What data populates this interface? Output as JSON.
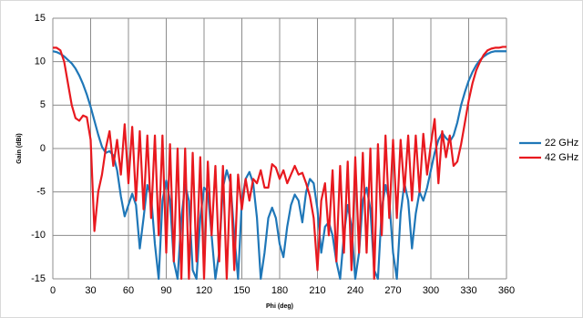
{
  "chart_data": {
    "type": "line",
    "xlabel": "Phi (deg)",
    "ylabel": "Gain (dBi)",
    "x": [
      0,
      3,
      6,
      9,
      12,
      15,
      18,
      21,
      24,
      27,
      30,
      33,
      36,
      39,
      42,
      45,
      48,
      51,
      54,
      57,
      60,
      63,
      66,
      69,
      72,
      75,
      78,
      81,
      84,
      87,
      90,
      93,
      96,
      99,
      102,
      105,
      108,
      111,
      114,
      117,
      120,
      123,
      126,
      129,
      132,
      135,
      138,
      141,
      144,
      147,
      150,
      153,
      156,
      159,
      162,
      165,
      168,
      171,
      174,
      177,
      180,
      183,
      186,
      189,
      192,
      195,
      198,
      201,
      204,
      207,
      210,
      213,
      216,
      219,
      222,
      225,
      228,
      231,
      234,
      237,
      240,
      243,
      246,
      249,
      252,
      255,
      258,
      261,
      264,
      267,
      270,
      273,
      276,
      279,
      282,
      285,
      288,
      291,
      294,
      297,
      300,
      303,
      306,
      309,
      312,
      315,
      318,
      321,
      324,
      327,
      330,
      333,
      336,
      339,
      342,
      345,
      348,
      351,
      354,
      357,
      360
    ],
    "series": [
      {
        "name": "22 GHz",
        "color": "#1f77b8",
        "values": [
          11.2,
          11.1,
          10.9,
          10.6,
          10.2,
          9.8,
          9.2,
          8.4,
          7.4,
          6.2,
          4.8,
          3.2,
          1.6,
          0.2,
          -0.5,
          -0.3,
          -0.8,
          -2.5,
          -5.5,
          -7.8,
          -6.5,
          -5.2,
          -6.5,
          -11.5,
          -8,
          -4.2,
          -5.5,
          -11,
          -15,
          -6,
          -3.7,
          -6,
          -13,
          -15,
          -8,
          -4.2,
          -6,
          -14,
          -15,
          -8,
          -4.5,
          -5,
          -10,
          -15,
          -12,
          -4.5,
          -2.5,
          -4,
          -10,
          -15,
          -6,
          -3.5,
          -2.7,
          -4,
          -8,
          -15,
          -12,
          -8,
          -6.8,
          -8,
          -11,
          -12.5,
          -9,
          -6.5,
          -5.3,
          -6,
          -8.5,
          -5,
          -3.5,
          -4,
          -7,
          -12,
          -9,
          -8.5,
          -10,
          -13,
          -15,
          -10,
          -6.5,
          -9,
          -15,
          -12,
          -6,
          -4.5,
          -7,
          -14,
          -15,
          -7,
          -4.2,
          -6,
          -12,
          -15,
          -7.5,
          -4,
          -6,
          -11.5,
          -7.5,
          -5,
          -6,
          -4.5,
          -2.5,
          -0.5,
          1,
          1.8,
          1.2,
          0.8,
          1.5,
          3,
          5,
          6.5,
          7.8,
          8.8,
          9.6,
          10.2,
          10.6,
          10.9,
          11.1,
          11.2,
          11.2,
          11.2,
          11.2
        ]
      },
      {
        "name": "42 GHz",
        "color": "#e8191f",
        "values": [
          11.6,
          11.6,
          11.3,
          10,
          7.5,
          5,
          3.5,
          3.2,
          3.8,
          3.6,
          1,
          -9.5,
          -5,
          -3,
          0,
          2,
          -2,
          1,
          -3,
          2.8,
          -4,
          2.5,
          -6,
          2,
          -7,
          1.5,
          -8,
          1.5,
          -10,
          1.5,
          -12,
          0.5,
          -13,
          0,
          -15,
          0,
          -15,
          -0.5,
          -13,
          -1,
          -15,
          -1.5,
          -10,
          -2,
          -13,
          -2,
          -15,
          -3,
          -14,
          -3,
          -7,
          -3.5,
          -6,
          -3.5,
          -4,
          -2.5,
          -4.5,
          -4.5,
          -1.8,
          -2.2,
          -3.5,
          -2.5,
          -4,
          -3,
          -2,
          -3,
          -2.8,
          -4,
          -5.5,
          -8,
          -14,
          -6,
          -4,
          -10,
          -2.5,
          -13,
          -2,
          -12,
          -1.5,
          -14,
          -1,
          -12,
          -0.5,
          -12,
          0,
          -15,
          0.5,
          -10,
          1.5,
          -8,
          1,
          -8,
          1,
          -5,
          1.5,
          -6,
          1.5,
          -5,
          1.7,
          -3,
          0.5,
          3.4,
          -4,
          2,
          -1,
          1.5,
          -2,
          -1.5,
          0.5,
          3,
          5.5,
          7.5,
          9,
          10,
          10.8,
          11.3,
          11.5,
          11.6,
          11.6,
          11.7,
          11.7
        ]
      }
    ],
    "xlim": [
      0,
      360
    ],
    "xticks": [
      0,
      30,
      60,
      90,
      120,
      150,
      180,
      210,
      240,
      270,
      300,
      330,
      360
    ],
    "ylim": [
      -15,
      15
    ],
    "yticks": [
      -15,
      -10,
      -5,
      0,
      5,
      10,
      15
    ],
    "grid": true,
    "legend": "right"
  }
}
